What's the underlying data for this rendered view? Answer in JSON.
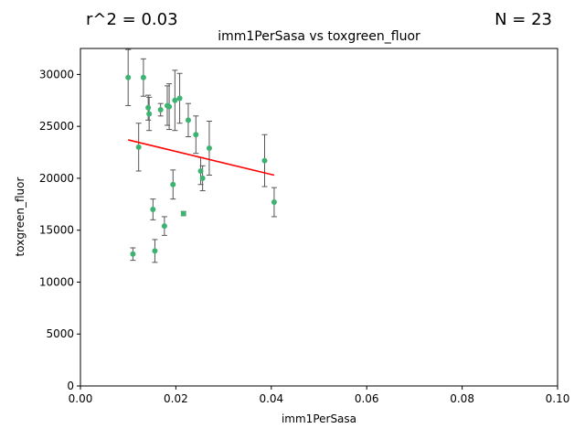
{
  "header": {
    "r2_label": "r^2 = 0.03",
    "n_label": "N = 23"
  },
  "colors": {
    "point": "#3cb371",
    "errorbar": "#555555",
    "fit_line": "#ff0000",
    "axis": "#000000"
  },
  "chart_data": {
    "type": "scatter",
    "title": "imm1PerSasa vs toxgreen_fluor",
    "xlabel": "imm1PerSasa",
    "ylabel": "toxgreen_fluor",
    "xlim": [
      0,
      0.1
    ],
    "ylim": [
      0,
      32500
    ],
    "xticks": [
      "0.00",
      "0.02",
      "0.04",
      "0.06",
      "0.08",
      "0.10"
    ],
    "yticks": [
      "0",
      "5000",
      "10000",
      "15000",
      "20000",
      "25000",
      "30000"
    ],
    "grid": false,
    "points": [
      {
        "x": 0.01,
        "y": 29700,
        "err": 2700
      },
      {
        "x": 0.011,
        "y": 12700,
        "err": 600
      },
      {
        "x": 0.0122,
        "y": 23000,
        "err": 2300
      },
      {
        "x": 0.0132,
        "y": 29700,
        "err": 1800
      },
      {
        "x": 0.0142,
        "y": 26800,
        "err": 1200
      },
      {
        "x": 0.0144,
        "y": 26200,
        "err": 1600
      },
      {
        "x": 0.0152,
        "y": 17000,
        "err": 1000
      },
      {
        "x": 0.0156,
        "y": 13000,
        "err": 1100
      },
      {
        "x": 0.0168,
        "y": 26600,
        "err": 600
      },
      {
        "x": 0.0176,
        "y": 15400,
        "err": 900
      },
      {
        "x": 0.0182,
        "y": 27000,
        "err": 1900
      },
      {
        "x": 0.0186,
        "y": 26900,
        "err": 2200
      },
      {
        "x": 0.0194,
        "y": 19400,
        "err": 1400
      },
      {
        "x": 0.0198,
        "y": 27500,
        "err": 2900
      },
      {
        "x": 0.0208,
        "y": 27700,
        "err": 2400
      },
      {
        "x": 0.0216,
        "y": 16600,
        "err": 200
      },
      {
        "x": 0.0226,
        "y": 25600,
        "err": 1600
      },
      {
        "x": 0.0242,
        "y": 24200,
        "err": 1800
      },
      {
        "x": 0.0252,
        "y": 20700,
        "err": 1300
      },
      {
        "x": 0.0256,
        "y": 20000,
        "err": 1200
      },
      {
        "x": 0.027,
        "y": 22900,
        "err": 2600
      },
      {
        "x": 0.0386,
        "y": 21700,
        "err": 2500
      },
      {
        "x": 0.0406,
        "y": 17700,
        "err": 1400
      }
    ],
    "fit": {
      "x": [
        0.01,
        0.0406
      ],
      "y": [
        23700,
        20300
      ]
    }
  }
}
